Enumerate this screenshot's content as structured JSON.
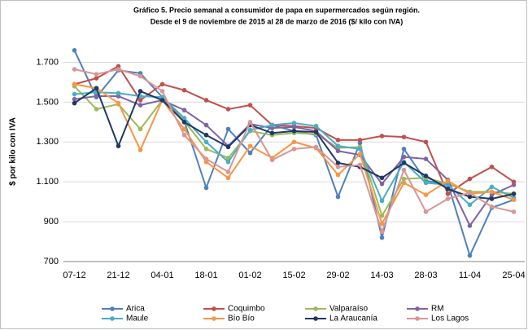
{
  "chart_data": {
    "type": "line",
    "title": "Gráfico 5. Precio semanal a consumidor de papa en supermercados según región.",
    "subtitle": "Desde el 9 de noviembre de 2015 al 28 de marzo de 2016 ($/ kilo con IVA)",
    "y_label": "$ por kilo con IVA",
    "categories": [
      "07-12",
      null,
      "21-12",
      null,
      "04-01",
      null,
      "18-01",
      null,
      "01-02",
      null,
      "15-02",
      null,
      "29-02",
      null,
      "14-03",
      null,
      "28-03",
      null,
      "11-04",
      null,
      "25-04"
    ],
    "ylim": [
      700,
      1800
    ],
    "yticks": [
      700,
      900,
      {
        "value": 1100,
        "label": "1.100"
      },
      {
        "value": 1300,
        "label": "1.300"
      },
      {
        "value": 1500,
        "label": "1.500"
      },
      {
        "value": 1700,
        "label": "1.700"
      }
    ],
    "grid": true,
    "series": [
      {
        "name": "Arica",
        "color": "#4f81bd",
        "values": [
          1760,
          1525,
          1660,
          1645,
          1525,
          1405,
          1070,
          1365,
          1245,
          1385,
          1355,
          1335,
          1025,
          1295,
          820,
          1265,
          1105,
          1090,
          730,
          970,
          1010
        ]
      },
      {
        "name": "Coquimbo",
        "color": "#c0504d",
        "values": [
          1590,
          1620,
          1680,
          1510,
          1590,
          1560,
          1510,
          1465,
          1485,
          1385,
          1380,
          1370,
          1310,
          1310,
          1330,
          1325,
          1300,
          1040,
          1115,
          1175,
          1100
        ]
      },
      {
        "name": "Valparaíso",
        "color": "#9bbb59",
        "values": [
          1580,
          1465,
          1490,
          1365,
          1510,
          1405,
          1265,
          1220,
          1355,
          1335,
          1345,
          1340,
          1270,
          1275,
          930,
          1115,
          1120,
          1090,
          1050,
          1050,
          1040
        ]
      },
      {
        "name": "RM",
        "color": "#8064a2",
        "values": [
          1515,
          1530,
          1530,
          1485,
          1510,
          1460,
          1385,
          1280,
          1390,
          1370,
          1375,
          1355,
          1255,
          1235,
          1090,
          1225,
          1215,
          1110,
          880,
          1035,
          1085
        ]
      },
      {
        "name": "Maule",
        "color": "#4bacc6",
        "values": [
          1540,
          1550,
          1545,
          1530,
          1525,
          1420,
          1300,
          1200,
          1360,
          1385,
          1395,
          1380,
          1280,
          1265,
          1005,
          1200,
          1095,
          1085,
          985,
          1075,
          1020
        ]
      },
      {
        "name": "Bío Bío",
        "color": "#f79646",
        "values": [
          1590,
          1570,
          1495,
          1260,
          1510,
          1365,
          1200,
          1120,
          1280,
          1220,
          1300,
          1270,
          1135,
          1240,
          890,
          1095,
          1035,
          1105,
          1040,
          1050,
          1010
        ]
      },
      {
        "name": "La Araucanía",
        "color": "#1f3864",
        "values": [
          1495,
          1570,
          1280,
          1555,
          1510,
          1400,
          1335,
          1275,
          1385,
          1345,
          1355,
          1350,
          1195,
          1175,
          1120,
          1195,
          1130,
          1065,
          1025,
          1015,
          1040
        ]
      },
      {
        "name": "Los Lagos",
        "color": "#d99694",
        "values": [
          1665,
          1640,
          1665,
          1630,
          1555,
          1335,
          1215,
          1150,
          1400,
          1210,
          1265,
          1275,
          1175,
          1185,
          850,
          1160,
          950,
          1015,
          1045,
          975,
          950
        ]
      }
    ]
  }
}
